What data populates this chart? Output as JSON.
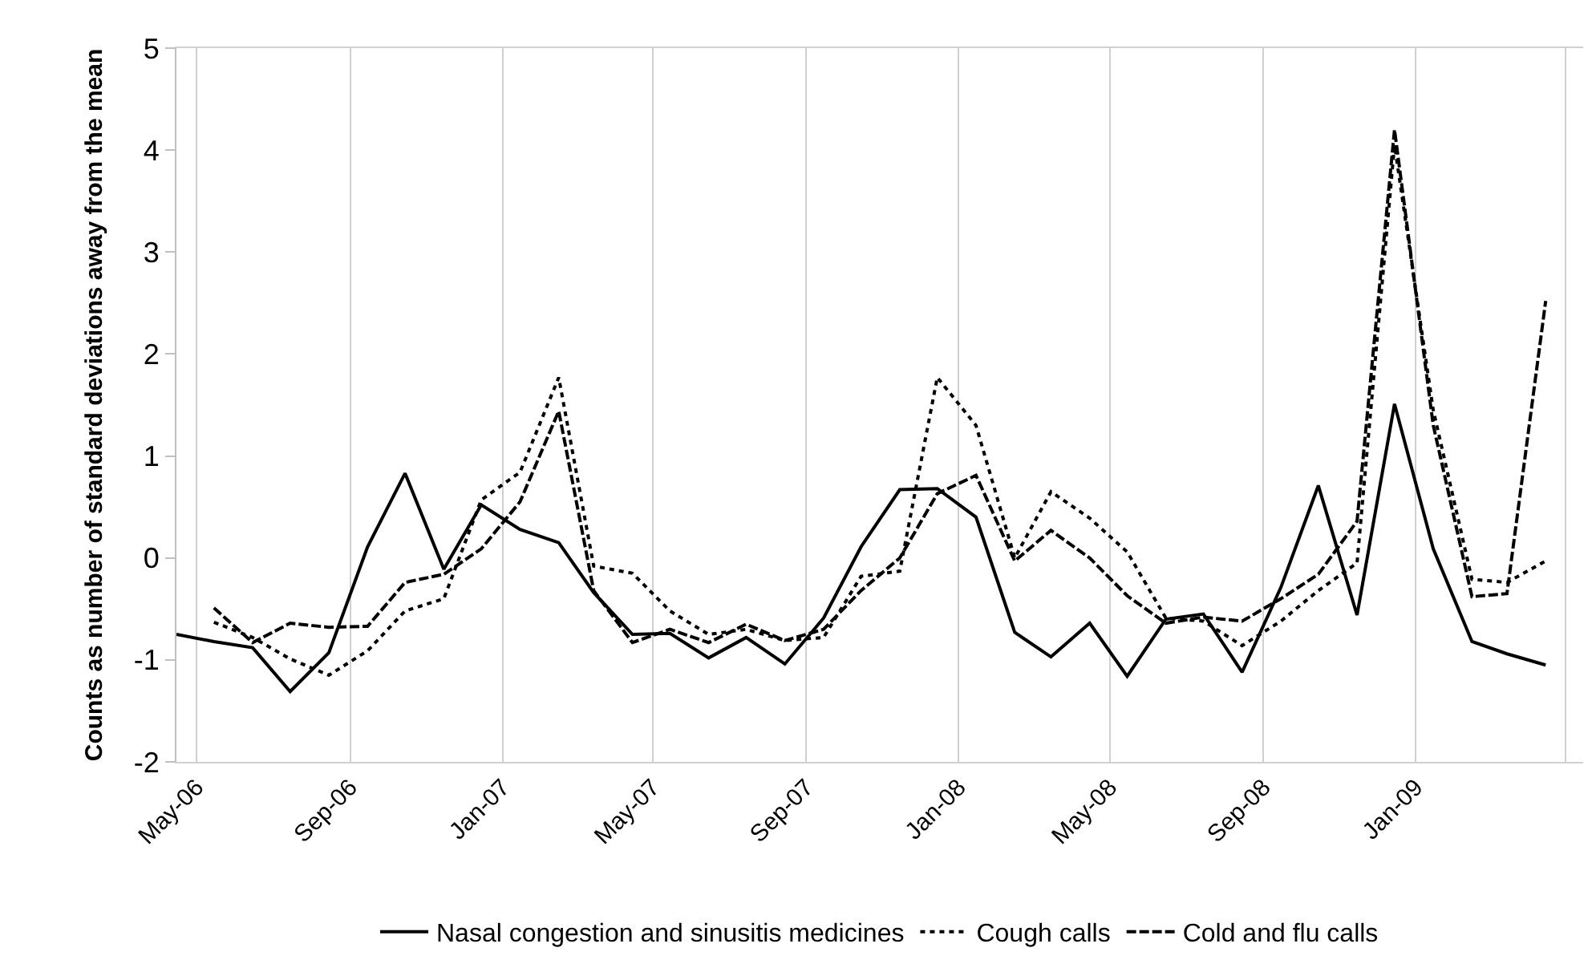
{
  "chart_data": {
    "type": "line",
    "ylabel": "Counts as number of standard deviations away from the mean",
    "x": [
      "2006-04-15",
      "2006-05-15",
      "2006-06-15",
      "2006-07-15",
      "2006-08-15",
      "2006-09-15",
      "2006-10-15",
      "2006-11-15",
      "2006-12-15",
      "2007-01-15",
      "2007-02-15",
      "2007-03-15",
      "2007-04-15",
      "2007-05-15",
      "2007-06-15",
      "2007-07-15",
      "2007-08-15",
      "2007-09-15",
      "2007-10-15",
      "2007-11-15",
      "2007-12-15",
      "2008-01-15",
      "2008-02-15",
      "2008-03-15",
      "2008-04-15",
      "2008-05-15",
      "2008-06-15",
      "2008-07-15",
      "2008-08-15",
      "2008-09-15",
      "2008-10-15",
      "2008-11-15",
      "2008-12-15",
      "2009-01-15",
      "2009-02-15",
      "2009-03-15",
      "2009-04-15"
    ],
    "series": [
      {
        "name": "Nasal congestion and sinusitis medicines",
        "color": "#000000",
        "line_style": "solid",
        "values": [
          -0.75,
          -0.82,
          -0.88,
          -1.31,
          -0.93,
          0.11,
          0.83,
          -0.11,
          0.52,
          0.28,
          0.15,
          -0.34,
          -0.75,
          -0.74,
          -0.98,
          -0.78,
          -1.04,
          -0.59,
          0.11,
          0.67,
          0.68,
          0.4,
          -0.73,
          -0.97,
          -0.64,
          -1.16,
          -0.6,
          -0.55,
          -1.12,
          -0.29,
          0.71,
          -0.56,
          1.51,
          0.09,
          -0.82,
          -0.94,
          -1.05
        ]
      },
      {
        "name": "Cough calls",
        "color": "#000000",
        "line_style": "dotted",
        "values": [
          null,
          -0.63,
          -0.78,
          -0.99,
          -1.15,
          -0.91,
          -0.52,
          -0.4,
          0.57,
          0.84,
          1.77,
          -0.08,
          -0.15,
          -0.52,
          -0.75,
          -0.7,
          -0.81,
          -0.78,
          -0.18,
          -0.13,
          1.77,
          1.3,
          0.0,
          0.65,
          0.39,
          0.06,
          -0.59,
          -0.62,
          -0.86,
          -0.62,
          -0.32,
          -0.05,
          4.05,
          1.45,
          -0.21,
          -0.24,
          -0.03
        ]
      },
      {
        "name": "Cold and flu calls",
        "color": "#000000",
        "line_style": "dashed",
        "values": [
          null,
          -0.49,
          -0.83,
          -0.64,
          -0.68,
          -0.67,
          -0.24,
          -0.16,
          0.09,
          0.55,
          1.44,
          -0.32,
          -0.83,
          -0.7,
          -0.83,
          -0.65,
          -0.81,
          -0.7,
          -0.32,
          0.0,
          0.63,
          0.81,
          -0.03,
          0.27,
          0.0,
          -0.37,
          -0.64,
          -0.58,
          -0.62,
          -0.4,
          -0.16,
          0.36,
          4.2,
          1.3,
          -0.38,
          -0.35,
          2.52
        ]
      }
    ],
    "xlim": [
      "2006-04-15",
      "2009-05-15"
    ],
    "xticks": [
      {
        "value": "2006-05-01",
        "label": "May-06"
      },
      {
        "value": "2006-09-01",
        "label": "Sep-06"
      },
      {
        "value": "2007-01-01",
        "label": "Jan-07"
      },
      {
        "value": "2007-05-01",
        "label": "May-07"
      },
      {
        "value": "2007-09-01",
        "label": "Sep-07"
      },
      {
        "value": "2008-01-01",
        "label": "Jan-08"
      },
      {
        "value": "2008-05-01",
        "label": "May-08"
      },
      {
        "value": "2008-09-01",
        "label": "Sep-08"
      },
      {
        "value": "2009-01-01",
        "label": "Jan-09"
      },
      {
        "value": "2009-05-01",
        "label": null
      }
    ],
    "ylim": [
      -2,
      5
    ],
    "yticks": [
      -2,
      -1,
      0,
      1,
      2,
      3,
      4,
      5
    ],
    "grid": "x",
    "legend": "bottom",
    "marker": "none"
  }
}
